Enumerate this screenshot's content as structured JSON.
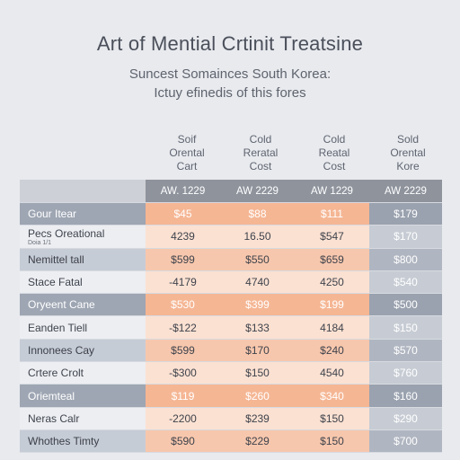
{
  "title": "Art of Mential Crtinit Treatsine",
  "subtitle_1": "Suncest Somainces South Korea:",
  "subtitle_2": "Ictuy efinedis of this fores",
  "column_titles": [
    [
      "Soif",
      "Orental",
      "Cart"
    ],
    [
      "Cold",
      "Reratal",
      "Cost"
    ],
    [
      "Cold",
      "Reatal",
      "Cost"
    ],
    [
      "Sold",
      "Orental",
      "Kore"
    ]
  ],
  "table": {
    "header": [
      "",
      "AW. 1229",
      "AW 2229",
      "AW 1229",
      "AW 2229"
    ],
    "rows": [
      {
        "name": "Gour Itear",
        "note": "",
        "values": [
          "$45",
          "$88",
          "$111",
          "$179"
        ]
      },
      {
        "name": "Pecs Oreational",
        "note": "Doia  1/1",
        "values": [
          "4239",
          "16.50",
          "$547",
          "$170"
        ]
      },
      {
        "name": "Nemittel tall",
        "note": "",
        "values": [
          "$599",
          "$550",
          "$659",
          "$800"
        ]
      },
      {
        "name": "Stace Fatal",
        "note": "",
        "values": [
          "-4179",
          "4740",
          "4250",
          "$540"
        ]
      },
      {
        "name": "Oryeent Cane",
        "note": "",
        "values": [
          "$530",
          "$399",
          "$199",
          "$500"
        ]
      },
      {
        "name": "Eanden Tiell",
        "note": "",
        "values": [
          "-$122",
          "$133",
          "4184",
          "$150"
        ]
      },
      {
        "name": "Innonees Cay",
        "note": "",
        "values": [
          "$599",
          "$170",
          "$240",
          "$570"
        ]
      },
      {
        "name": "Crtere Crolt",
        "note": "",
        "values": [
          "-$300",
          "$150",
          "4540",
          "$760"
        ]
      },
      {
        "name": "Oriemteal",
        "note": "",
        "values": [
          "$119",
          "$260",
          "$340",
          "$160"
        ]
      },
      {
        "name": "Neras Calr",
        "note": "",
        "values": [
          "-2200",
          "$239",
          "$150",
          "$290"
        ]
      },
      {
        "name": "Whothes Timty",
        "note": "",
        "values": [
          "$590",
          "$229",
          "$150",
          "$700"
        ]
      }
    ]
  },
  "colors": {
    "background": "#e8eaee",
    "accent_peach": "#f7c7ad",
    "header_gray": "#8e939c",
    "row_dark": "#9ea6b3"
  }
}
